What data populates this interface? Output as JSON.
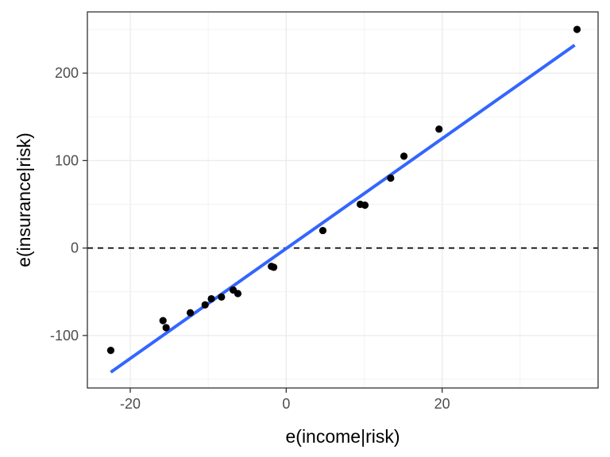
{
  "chart_data": {
    "type": "scatter",
    "xlabel": "e(income|risk)",
    "ylabel": "e(insurance|risk)",
    "xlim": [
      -25.5,
      40
    ],
    "ylim": [
      -160,
      270
    ],
    "x_ticks": [
      -20,
      0,
      20
    ],
    "x_tick_labels": [
      "-20",
      "0",
      "20"
    ],
    "x_minor_ticks": [
      -10,
      10,
      30
    ],
    "y_ticks": [
      -100,
      0,
      100,
      200
    ],
    "y_tick_labels": [
      "-100",
      "0",
      "100",
      "200"
    ],
    "y_minor_ticks": [
      -150,
      -50,
      50,
      150,
      250
    ],
    "grid": true,
    "points": [
      {
        "x": -22.5,
        "y": -117
      },
      {
        "x": -15.8,
        "y": -83
      },
      {
        "x": -15.4,
        "y": -91
      },
      {
        "x": -12.3,
        "y": -74
      },
      {
        "x": -10.4,
        "y": -65
      },
      {
        "x": -9.6,
        "y": -58
      },
      {
        "x": -8.3,
        "y": -56
      },
      {
        "x": -6.8,
        "y": -48
      },
      {
        "x": -6.2,
        "y": -52
      },
      {
        "x": -1.9,
        "y": -21
      },
      {
        "x": -1.6,
        "y": -22
      },
      {
        "x": 4.7,
        "y": 20
      },
      {
        "x": 9.5,
        "y": 50
      },
      {
        "x": 10.1,
        "y": 49
      },
      {
        "x": 13.4,
        "y": 80
      },
      {
        "x": 15.1,
        "y": 105
      },
      {
        "x": 19.6,
        "y": 136
      },
      {
        "x": 37.3,
        "y": 250
      }
    ],
    "fit_line": {
      "x": [
        -22.5,
        37.0
      ],
      "y": [
        -142,
        232
      ],
      "color": "#3366FF"
    },
    "reference_line": {
      "y": 0,
      "style": "dashed",
      "color": "#000000"
    },
    "point_color": "#000000"
  }
}
